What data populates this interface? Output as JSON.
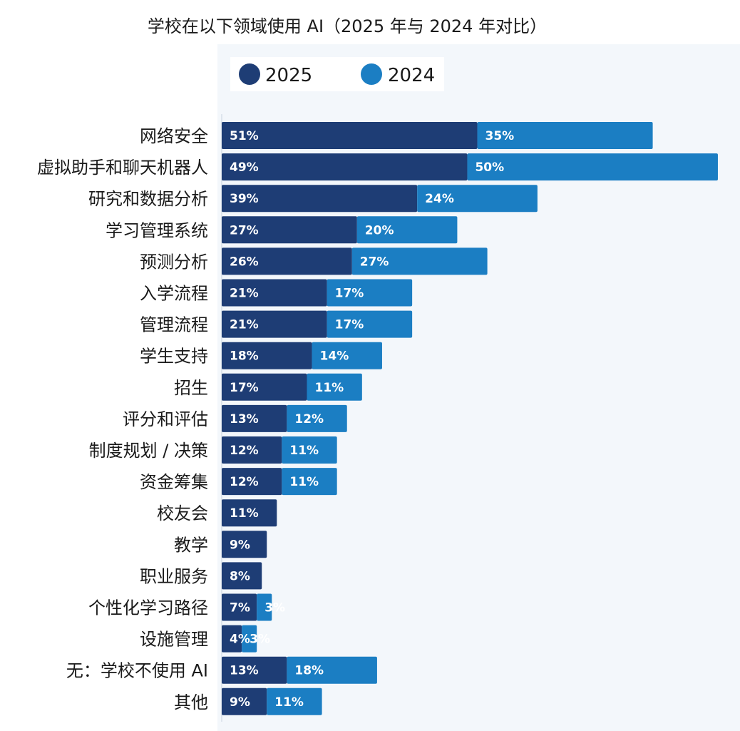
{
  "colors": {
    "series_2025": "#1e3d75",
    "series_2024": "#1b7ec3",
    "plot_bg": "#f3f7fb",
    "text": "#1a1a1a"
  },
  "chart_data": {
    "type": "bar",
    "orientation": "horizontal",
    "stacked": true,
    "title": "学校在以下领域使用 AI（2025 年与 2024 年对比）",
    "xlabel": "",
    "ylabel": "",
    "legend_position": "top",
    "categories": [
      "网络安全",
      "虚拟助手和聊天机器人",
      "研究和数据分析",
      "学习管理系统",
      "预测分析",
      "入学流程",
      "管理流程",
      "学生支持",
      "招生",
      "评分和评估",
      "制度规划 / 决策",
      "资金筹集",
      "校友会",
      "教学",
      "职业服务",
      "个性化学习路径",
      "设施管理",
      "无：学校不使用 AI",
      "其他"
    ],
    "series": [
      {
        "name": "2025",
        "values": [
          51,
          49,
          39,
          27,
          26,
          21,
          21,
          18,
          17,
          13,
          12,
          12,
          11,
          9,
          8,
          7,
          4,
          13,
          9
        ],
        "labels": [
          "51%",
          "49%",
          "39%",
          "27%",
          "26%",
          "21%",
          "21%",
          "18%",
          "17%",
          "13%",
          "12%",
          "12%",
          "11%",
          "9%",
          "8%",
          "7%",
          "4%",
          "13%",
          "9%"
        ]
      },
      {
        "name": "2024",
        "values": [
          35,
          50,
          24,
          20,
          27,
          17,
          17,
          14,
          11,
          12,
          11,
          11,
          null,
          null,
          null,
          3,
          3,
          18,
          11
        ],
        "labels": [
          "35%",
          "50%",
          "24%",
          "20%",
          "27%",
          "17%",
          "17%",
          "14%",
          "11%",
          "12%",
          "11%",
          "11%",
          null,
          null,
          null,
          "3%",
          "3%",
          "18%",
          "11%"
        ]
      }
    ],
    "xlim": [
      0,
      100
    ]
  }
}
